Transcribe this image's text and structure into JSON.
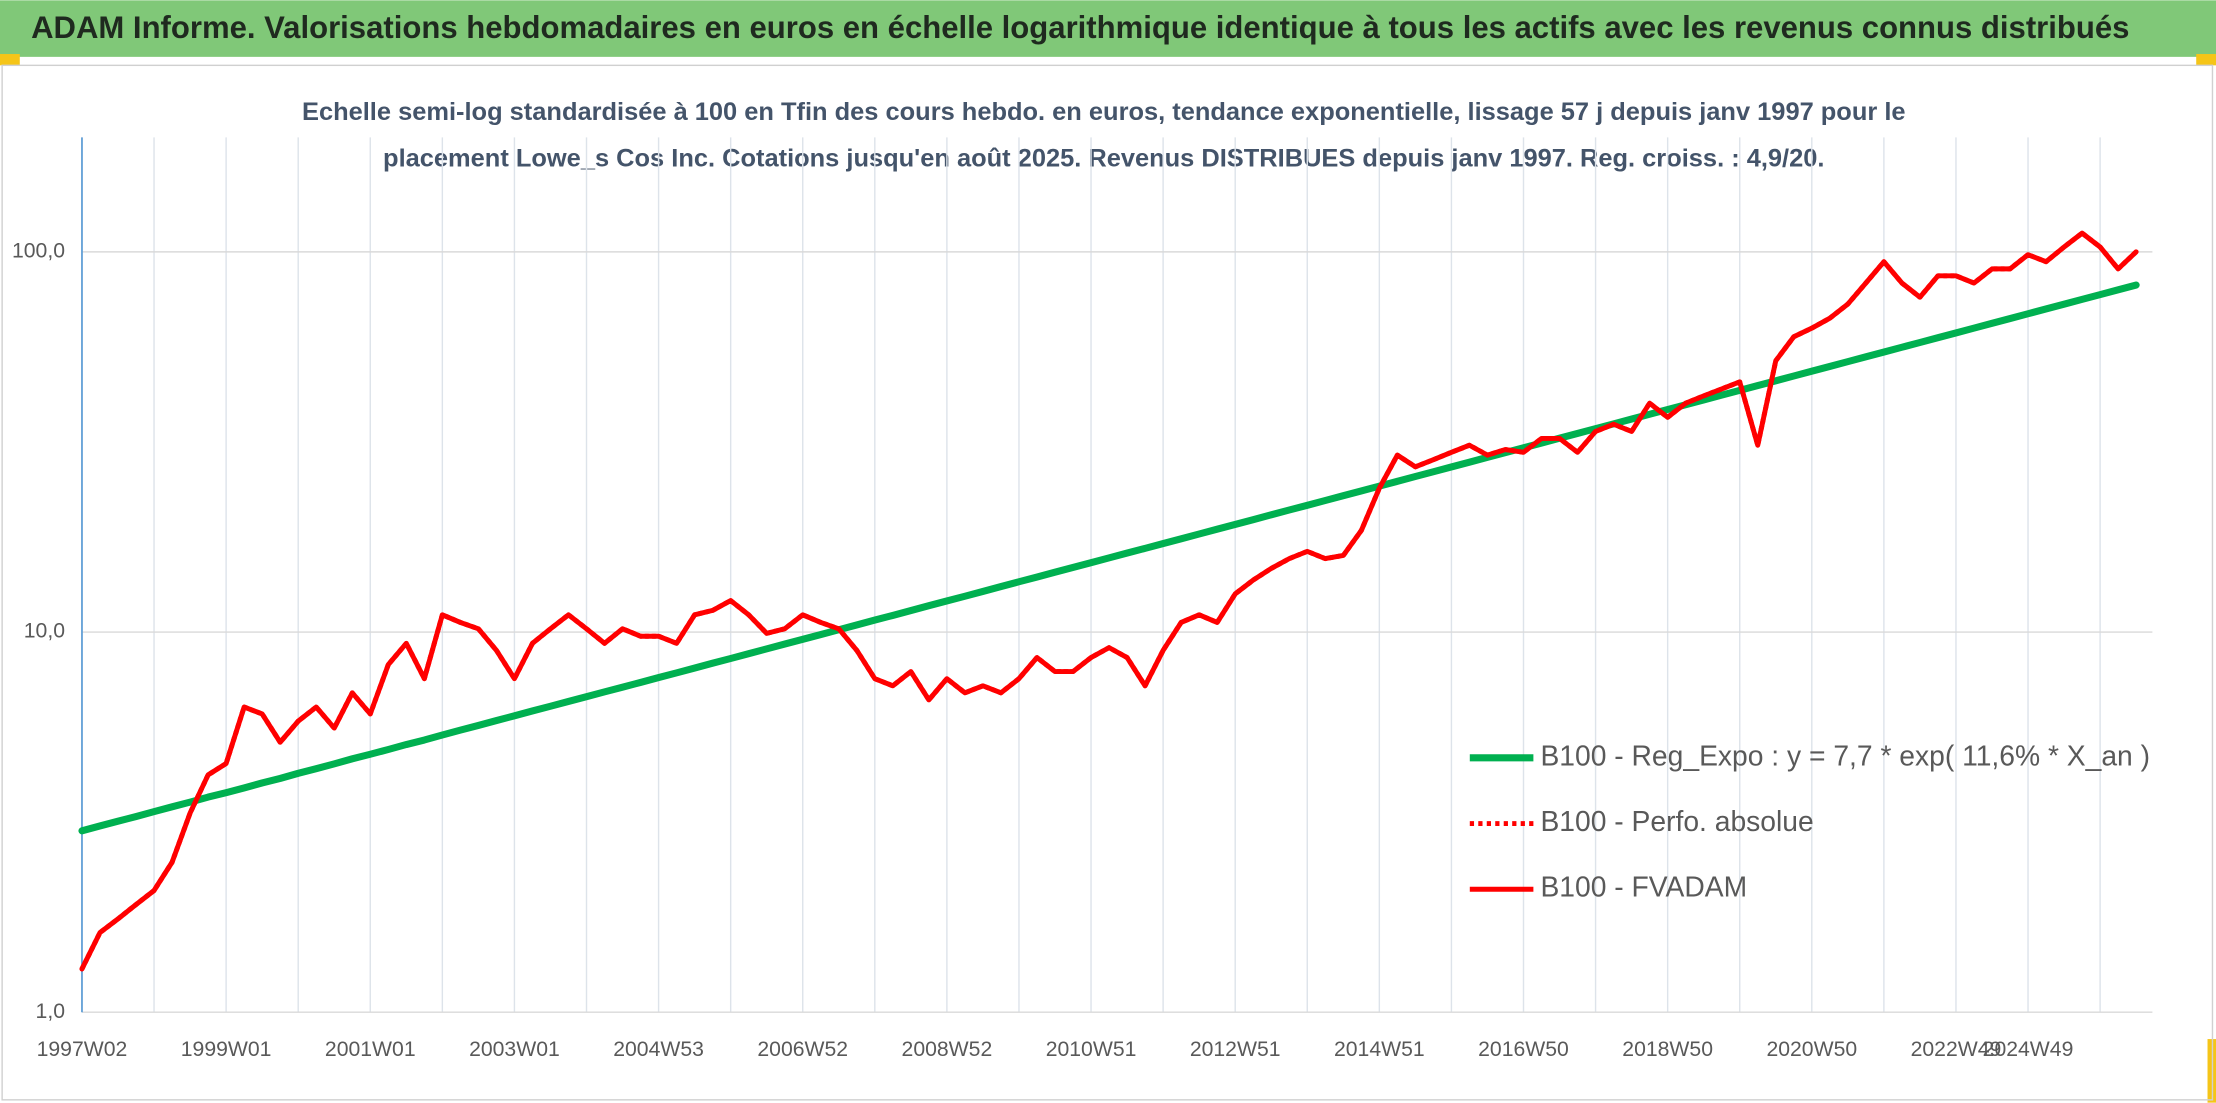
{
  "chart_data": {
    "type": "line",
    "title": "ADAM Informe. Valorisations hebdomadaires en euros en échelle logarithmique identique à tous les actifs avec les revenus connus distribués",
    "subtitle": [
      "Echelle semi-log standardisée à 100 en Tfin des cours hebdo. en euros, tendance exponentielle, lissage 57 j depuis janv 1997 pour le",
      "placement Lowe_s Cos Inc. Cotations jusqu'en août 2025. Revenus DISTRIBUES depuis janv 1997. Reg. croiss. : 4,9/20."
    ],
    "categories": [
      "1997W02",
      null,
      null,
      null,
      null,
      null,
      null,
      null,
      "1999W01",
      null,
      null,
      null,
      null,
      null,
      null,
      null,
      "2001W01",
      null,
      null,
      null,
      null,
      null,
      null,
      null,
      "2003W01",
      null,
      null,
      null,
      null,
      null,
      null,
      null,
      "2004W53",
      null,
      null,
      null,
      null,
      null,
      null,
      null,
      "2006W52",
      null,
      null,
      null,
      null,
      null,
      null,
      null,
      "2008W52",
      null,
      null,
      null,
      null,
      null,
      null,
      null,
      "2010W51",
      null,
      null,
      null,
      null,
      null,
      null,
      null,
      "2012W51",
      null,
      null,
      null,
      null,
      null,
      null,
      null,
      "2014W51",
      null,
      null,
      null,
      null,
      null,
      null,
      null,
      "2016W50",
      null,
      null,
      null,
      null,
      null,
      null,
      null,
      "2018W50",
      null,
      null,
      null,
      null,
      null,
      null,
      null,
      "2020W50",
      null,
      null,
      null,
      null,
      null,
      null,
      null,
      "2022W49",
      null,
      null,
      null,
      "2024W49",
      null,
      null,
      null,
      null,
      null,
      null
    ],
    "series": [
      {
        "name": "B100 - Reg_Expo : y = 7,7 * exp( 11,6% *  X_an )",
        "color": "#00b050",
        "style": "solid",
        "values": [
          3.0,
          3.09,
          3.18,
          3.27,
          3.37,
          3.47,
          3.57,
          3.68,
          3.78,
          3.89,
          4.01,
          4.12,
          4.25,
          4.37,
          4.5,
          4.64,
          4.77,
          4.91,
          5.06,
          5.2,
          5.36,
          5.52,
          5.68,
          5.85,
          6.02,
          6.2,
          6.38,
          6.57,
          6.76,
          6.96,
          7.16,
          7.37,
          7.59,
          7.81,
          8.04,
          8.28,
          8.52,
          8.77,
          9.03,
          9.3,
          9.57,
          9.85,
          10.14,
          10.44,
          10.75,
          11.06,
          11.39,
          11.73,
          12.07,
          12.42,
          12.79,
          13.17,
          13.56,
          13.95,
          14.37,
          14.79,
          15.22,
          15.67,
          16.13,
          16.6,
          17.09,
          17.59,
          18.11,
          18.64,
          19.19,
          19.75,
          20.34,
          20.94,
          21.55,
          22.18,
          22.84,
          23.51,
          24.2,
          24.91,
          25.65,
          26.4,
          27.18,
          27.98,
          28.81,
          29.65,
          30.52,
          31.41,
          32.35,
          33.3,
          34.28,
          35.28,
          36.33,
          37.4,
          38.49,
          39.62,
          40.79,
          41.99,
          43.22,
          44.49,
          45.8,
          47.15,
          48.54,
          49.97,
          51.44,
          52.95,
          54.51,
          56.11,
          57.76,
          59.47,
          61.21,
          63.01,
          64.86,
          66.77,
          68.74,
          70.76,
          72.84,
          74.99,
          77.19,
          79.46,
          81.8
        ]
      },
      {
        "name": "B100 - Perfo. absolue",
        "color": "#ff0000",
        "style": "dotted",
        "values": [
          1.3,
          1.62,
          1.76,
          1.92,
          2.09,
          2.48,
          3.34,
          4.21,
          4.51,
          6.35,
          6.09,
          5.13,
          5.83,
          6.35,
          5.59,
          6.92,
          6.09,
          8.21,
          9.34,
          7.54,
          11.1,
          10.6,
          10.2,
          8.95,
          7.54,
          9.34,
          10.2,
          11.1,
          10.2,
          9.34,
          10.2,
          9.75,
          9.75,
          9.34,
          11.1,
          11.4,
          12.1,
          11.1,
          9.92,
          10.2,
          11.1,
          10.6,
          10.2,
          8.95,
          7.54,
          7.22,
          7.87,
          6.63,
          7.54,
          6.92,
          7.22,
          6.92,
          7.54,
          8.57,
          7.87,
          7.87,
          8.57,
          9.1,
          8.57,
          7.22,
          8.95,
          10.6,
          11.1,
          10.6,
          12.6,
          13.7,
          14.7,
          15.6,
          16.3,
          15.6,
          15.9,
          18.5,
          23.9,
          29.2,
          27.2,
          28.4,
          29.7,
          31.0,
          29.2,
          30.2,
          29.7,
          32.3,
          32.3,
          29.7,
          33.7,
          35.2,
          33.7,
          40.0,
          36.7,
          40.0,
          41.8,
          43.6,
          45.5,
          31.0,
          51.7,
          59.8,
          63.0,
          66.9,
          72.9,
          82.8,
          94.2,
          82.8,
          76.0,
          86.5,
          86.5,
          82.8,
          90.2,
          90.2,
          98.3,
          94.2,
          103,
          112,
          103,
          90.2,
          100
        ]
      },
      {
        "name": "B100 - FVADAM",
        "color": "#ff0000",
        "style": "solid",
        "values": [
          1.3,
          1.62,
          1.76,
          1.92,
          2.09,
          2.48,
          3.34,
          4.21,
          4.51,
          6.35,
          6.09,
          5.13,
          5.83,
          6.35,
          5.59,
          6.92,
          6.09,
          8.21,
          9.34,
          7.54,
          11.1,
          10.6,
          10.2,
          8.95,
          7.54,
          9.34,
          10.2,
          11.1,
          10.2,
          9.34,
          10.2,
          9.75,
          9.75,
          9.34,
          11.1,
          11.4,
          12.1,
          11.1,
          9.92,
          10.2,
          11.1,
          10.6,
          10.2,
          8.95,
          7.54,
          7.22,
          7.87,
          6.63,
          7.54,
          6.92,
          7.22,
          6.92,
          7.54,
          8.57,
          7.87,
          7.87,
          8.57,
          9.1,
          8.57,
          7.22,
          8.95,
          10.6,
          11.1,
          10.6,
          12.6,
          13.7,
          14.7,
          15.6,
          16.3,
          15.6,
          15.9,
          18.5,
          23.9,
          29.2,
          27.2,
          28.4,
          29.7,
          31.0,
          29.2,
          30.2,
          29.7,
          32.3,
          32.3,
          29.7,
          33.7,
          35.2,
          33.7,
          40.0,
          36.7,
          40.0,
          41.8,
          43.6,
          45.5,
          31.0,
          51.7,
          59.8,
          63.0,
          66.9,
          72.9,
          82.8,
          94.2,
          82.8,
          76.0,
          86.5,
          86.5,
          82.8,
          90.2,
          90.2,
          98.3,
          94.2,
          103,
          112,
          103,
          90.2,
          100
        ]
      }
    ],
    "ylim": [
      1,
      200
    ],
    "yticks": [
      {
        "value": 1,
        "label": "1,0"
      },
      {
        "value": 10,
        "label": "10,0"
      },
      {
        "value": 100,
        "label": "100,0"
      }
    ],
    "log_scale_y": true,
    "grid": true,
    "legend": "right"
  }
}
